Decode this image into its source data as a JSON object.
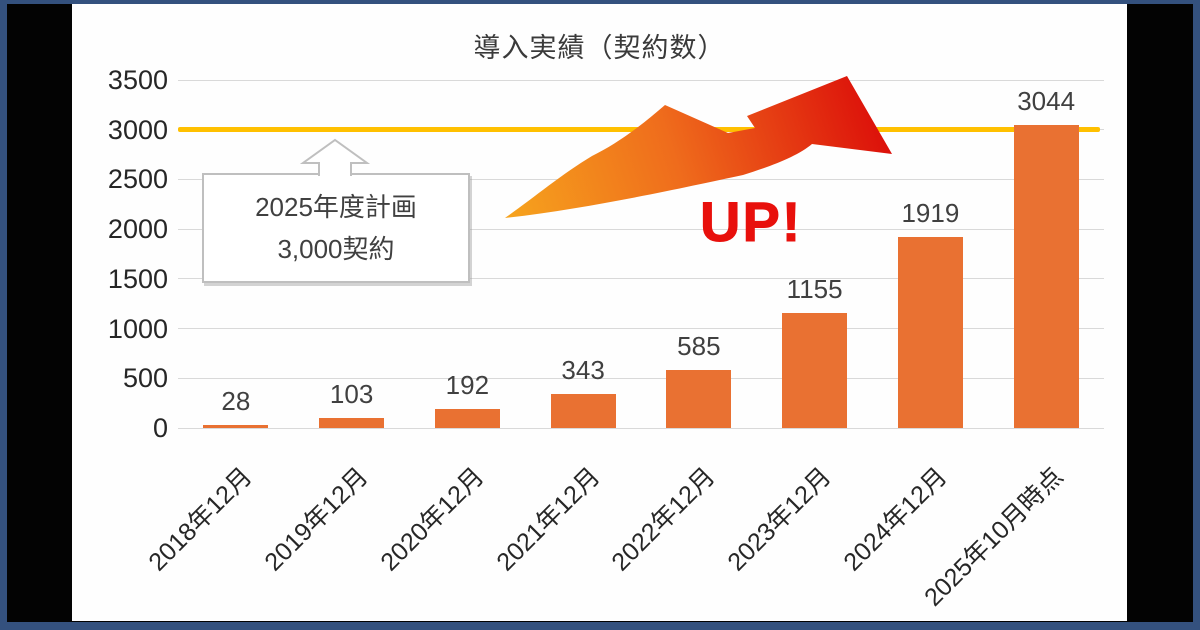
{
  "frame": {
    "border_color": "#34517E",
    "matte_color": "#030303"
  },
  "chart_data": {
    "type": "bar",
    "title": "導入実績（契約数）",
    "categories": [
      "2018年12月",
      "2019年12月",
      "2020年12月",
      "2021年12月",
      "2022年12月",
      "2023年12月",
      "2024年12月",
      "2025年10月時点"
    ],
    "values": [
      28,
      103,
      192,
      343,
      585,
      1155,
      1919,
      3044
    ],
    "xlabel": "",
    "ylabel": "",
    "ylim": [
      0,
      3500
    ],
    "ytick_step": 500,
    "grid": true,
    "legend_position": "none",
    "bar_color": "#E97132",
    "grid_color": "#D9D9D9",
    "value_label_color": "#404040",
    "axis_text_color": "#262626",
    "target_line": {
      "value": 3000,
      "color": "#FFC000"
    },
    "callout": {
      "line1": "2025年度計画",
      "line2": "3,000契約",
      "border_color": "#BFBFBF"
    },
    "annotation": {
      "label": "UP!",
      "color": "#E8100C"
    }
  }
}
